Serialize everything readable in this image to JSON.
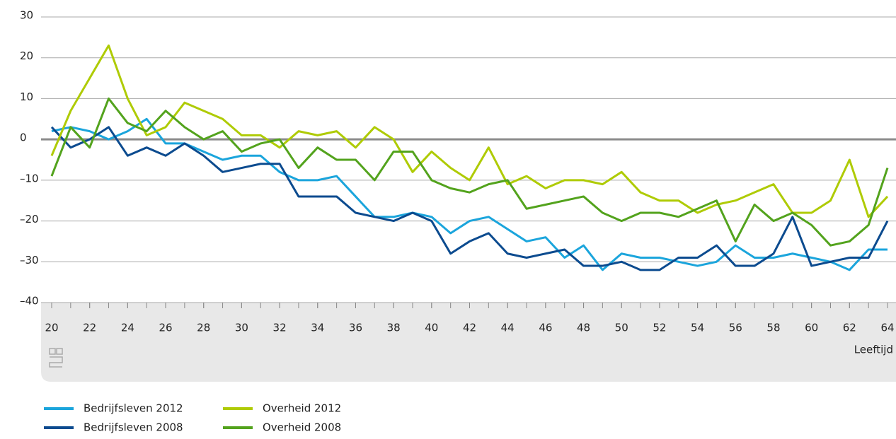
{
  "chart_data": {
    "type": "line",
    "x": [
      20,
      21,
      22,
      23,
      24,
      25,
      26,
      27,
      28,
      29,
      30,
      31,
      32,
      33,
      34,
      35,
      36,
      37,
      38,
      39,
      40,
      41,
      42,
      43,
      44,
      45,
      46,
      47,
      48,
      49,
      50,
      51,
      52,
      53,
      54,
      55,
      56,
      57,
      58,
      59,
      60,
      61,
      62,
      63,
      64
    ],
    "series": [
      {
        "name": "Bedrijfsleven 2012",
        "color": "#1ba5dc",
        "values": [
          2,
          3,
          2,
          0,
          2,
          5,
          -1,
          -1,
          -3,
          -5,
          -4,
          -4,
          -8,
          -10,
          -10,
          -9,
          -14,
          -19,
          -19,
          -18,
          -19,
          -23,
          -20,
          -19,
          -22,
          -25,
          -24,
          -29,
          -26,
          -32,
          -28,
          -29,
          -29,
          -30,
          -31,
          -30,
          -26,
          -29,
          -29,
          -28,
          -29,
          -30,
          -32,
          -27,
          -27
        ]
      },
      {
        "name": "Bedrijfsleven 2008",
        "color": "#0c4b8f",
        "values": [
          3,
          -2,
          0,
          3,
          -4,
          -2,
          -4,
          -1,
          -4,
          -8,
          -7,
          -6,
          -6,
          -14,
          -14,
          -14,
          -18,
          -19,
          -20,
          -18,
          -20,
          -28,
          -25,
          -23,
          -28,
          -29,
          -28,
          -27,
          -31,
          -31,
          -30,
          -32,
          -32,
          -29,
          -29,
          -26,
          -31,
          -31,
          -28,
          -19,
          -31,
          -30,
          -29,
          -29,
          -20
        ]
      },
      {
        "name": "Overheid 2012",
        "color": "#afcb05",
        "values": [
          -4,
          7,
          15,
          23,
          10,
          1,
          3,
          9,
          7,
          5,
          1,
          1,
          -2,
          2,
          1,
          2,
          -2,
          3,
          0,
          -8,
          -3,
          -7,
          -10,
          -2,
          -11,
          -9,
          -12,
          -10,
          -10,
          -11,
          -8,
          -13,
          -15,
          -15,
          -18,
          -16,
          -15,
          -13,
          -11,
          -18,
          -18,
          -15,
          -5,
          -19,
          -14
        ]
      },
      {
        "name": "Overheid 2008",
        "color": "#53a31d",
        "values": [
          -9,
          3,
          -2,
          10,
          4,
          2,
          7,
          3,
          0,
          2,
          -3,
          -1,
          0,
          -7,
          -2,
          -5,
          -5,
          -10,
          -3,
          -3,
          -10,
          -12,
          -13,
          -11,
          -10,
          -17,
          -16,
          -15,
          -14,
          -18,
          -20,
          -18,
          -18,
          -19,
          -17,
          -15,
          -25,
          -16,
          -20,
          -18,
          -21,
          -26,
          -25,
          -21,
          -7
        ]
      }
    ],
    "xlabel": "Leeftijd",
    "xlim": [
      20,
      64
    ],
    "xticks": [
      20,
      22,
      24,
      26,
      28,
      30,
      32,
      34,
      36,
      38,
      40,
      42,
      44,
      46,
      48,
      50,
      52,
      54,
      56,
      58,
      60,
      62,
      64
    ],
    "ylim": [
      -40,
      30
    ],
    "yticks": [
      {
        "value": -40,
        "label": "–40"
      },
      {
        "value": -30,
        "label": "–30"
      },
      {
        "value": -20,
        "label": "–20"
      },
      {
        "value": -10,
        "label": "–10"
      },
      0,
      10,
      20,
      30
    ],
    "grid": true
  }
}
